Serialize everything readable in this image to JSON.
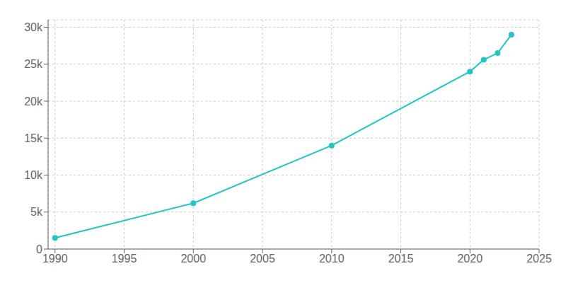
{
  "chart_data": {
    "type": "line",
    "x": [
      1990,
      2000,
      2010,
      2020,
      2021,
      2022,
      2023
    ],
    "values": [
      1500,
      6200,
      14000,
      24000,
      25600,
      26500,
      29000
    ],
    "color": "#20c5c5",
    "marker": "circle",
    "xlim": [
      1989.5,
      2025
    ],
    "ylim": [
      0,
      31000
    ],
    "xticks": [
      1990,
      1995,
      2000,
      2005,
      2010,
      2015,
      2020,
      2025
    ],
    "yticks": [
      0,
      {
        "value": 5000,
        "label": "5k"
      },
      {
        "value": 10000,
        "label": "10k"
      },
      {
        "value": 15000,
        "label": "15k"
      },
      {
        "value": 20000,
        "label": "20k"
      },
      {
        "value": 25000,
        "label": "25k"
      },
      {
        "value": 30000,
        "label": "30k"
      }
    ],
    "grid": true
  }
}
